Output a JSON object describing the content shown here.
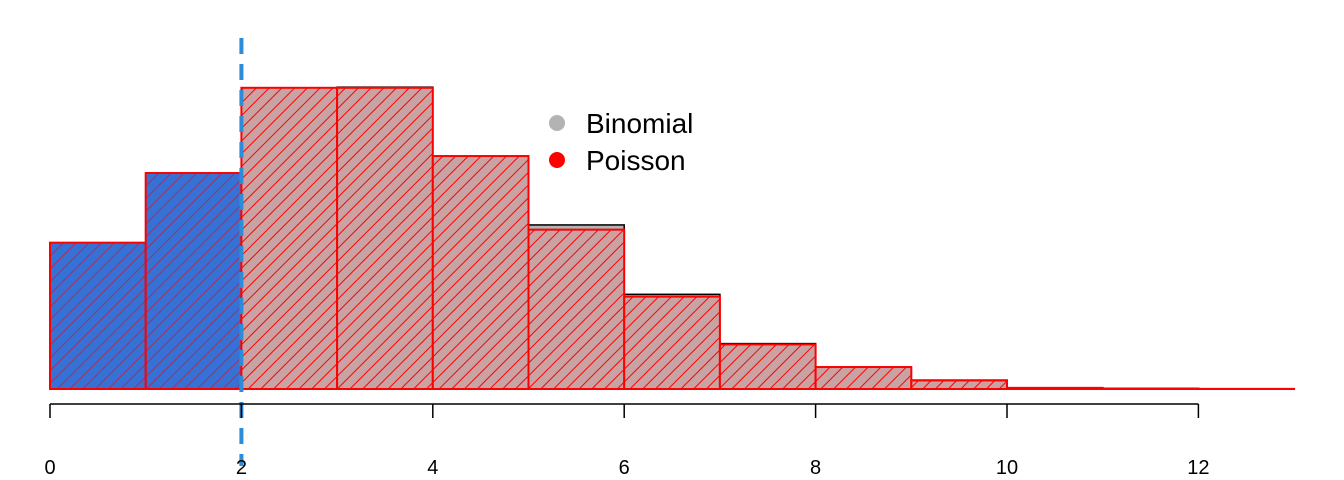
{
  "chart_data": {
    "type": "bar",
    "title": "",
    "xlabel": "",
    "ylabel": "",
    "x_bins": [
      0,
      1,
      2,
      3,
      4,
      5,
      6,
      7,
      8,
      9,
      10,
      11,
      12
    ],
    "series": [
      {
        "name": "Binomial",
        "values": [
          0.1116,
          0.1674,
          0.2325,
          0.2366,
          0.1808,
          0.1286,
          0.0742,
          0.0356,
          0.0172,
          0.007,
          0.0008,
          0.0003,
          0.0001
        ],
        "color": "#b3b3b3",
        "border": "#000000"
      },
      {
        "name": "Poisson",
        "values": [
          0.1147,
          0.1693,
          0.2361,
          0.2361,
          0.1826,
          0.1249,
          0.0724,
          0.0349,
          0.0172,
          0.0067,
          0.0009,
          0.0004,
          0.0001
        ],
        "color": "#ff0000",
        "hatch": "#ff0000"
      }
    ],
    "highlight": {
      "x_max": 2,
      "color": "#3671d6",
      "hatch": "#ff0000"
    },
    "vline": {
      "x": 2,
      "color": "#2e8bd8",
      "style": "dashed"
    },
    "xlim": [
      0,
      13
    ],
    "ylim": [
      0,
      0.2375
    ],
    "xticks": [
      "0",
      "2",
      "4",
      "6",
      "8",
      "10",
      "12"
    ],
    "grid": false,
    "legend_position": "top-center"
  }
}
